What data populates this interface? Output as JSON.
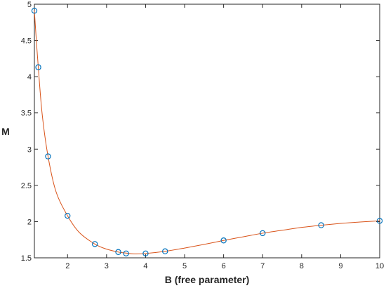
{
  "chart_data": {
    "type": "scatter",
    "title": "",
    "xlabel": "B (free parameter)",
    "ylabel": "M",
    "xlim": [
      1.15,
      10
    ],
    "ylim": [
      1.5,
      5
    ],
    "xticks": [
      2,
      3,
      4,
      5,
      6,
      7,
      8,
      9,
      10
    ],
    "xtick_labels": [
      "2",
      "3",
      "4",
      "5",
      "6",
      "7",
      "8",
      "9",
      "10"
    ],
    "yticks": [
      1.5,
      2,
      2.5,
      3,
      3.5,
      4,
      4.5,
      5
    ],
    "ytick_labels": [
      "1.5",
      "2",
      "2.5",
      "3",
      "3.5",
      "4",
      "4.5",
      "5"
    ],
    "grid": false,
    "legend": "none",
    "series": [
      {
        "kind": "markers",
        "marker": "circle",
        "color": "#0072BD",
        "x": [
          1.15,
          1.25,
          1.5,
          2.0,
          2.7,
          3.3,
          3.5,
          4.0,
          4.5,
          6.0,
          7.0,
          8.5,
          10.0
        ],
        "y": [
          4.91,
          4.13,
          2.9,
          2.08,
          1.69,
          1.58,
          1.56,
          1.56,
          1.59,
          1.74,
          1.84,
          1.95,
          2.01
        ]
      },
      {
        "kind": "line",
        "color": "#D95319",
        "x": [
          1.15,
          1.2,
          1.25,
          1.35,
          1.5,
          1.7,
          2.0,
          2.3,
          2.7,
          3.0,
          3.3,
          3.5,
          3.7,
          4.0,
          4.5,
          5.0,
          5.5,
          6.0,
          6.5,
          7.0,
          7.5,
          8.0,
          8.5,
          9.0,
          9.5,
          10.0
        ],
        "y": [
          4.91,
          4.5,
          4.13,
          3.48,
          2.9,
          2.42,
          2.08,
          1.85,
          1.69,
          1.62,
          1.58,
          1.565,
          1.555,
          1.56,
          1.59,
          1.635,
          1.685,
          1.74,
          1.79,
          1.84,
          1.88,
          1.92,
          1.95,
          1.975,
          1.995,
          2.01
        ]
      }
    ]
  }
}
